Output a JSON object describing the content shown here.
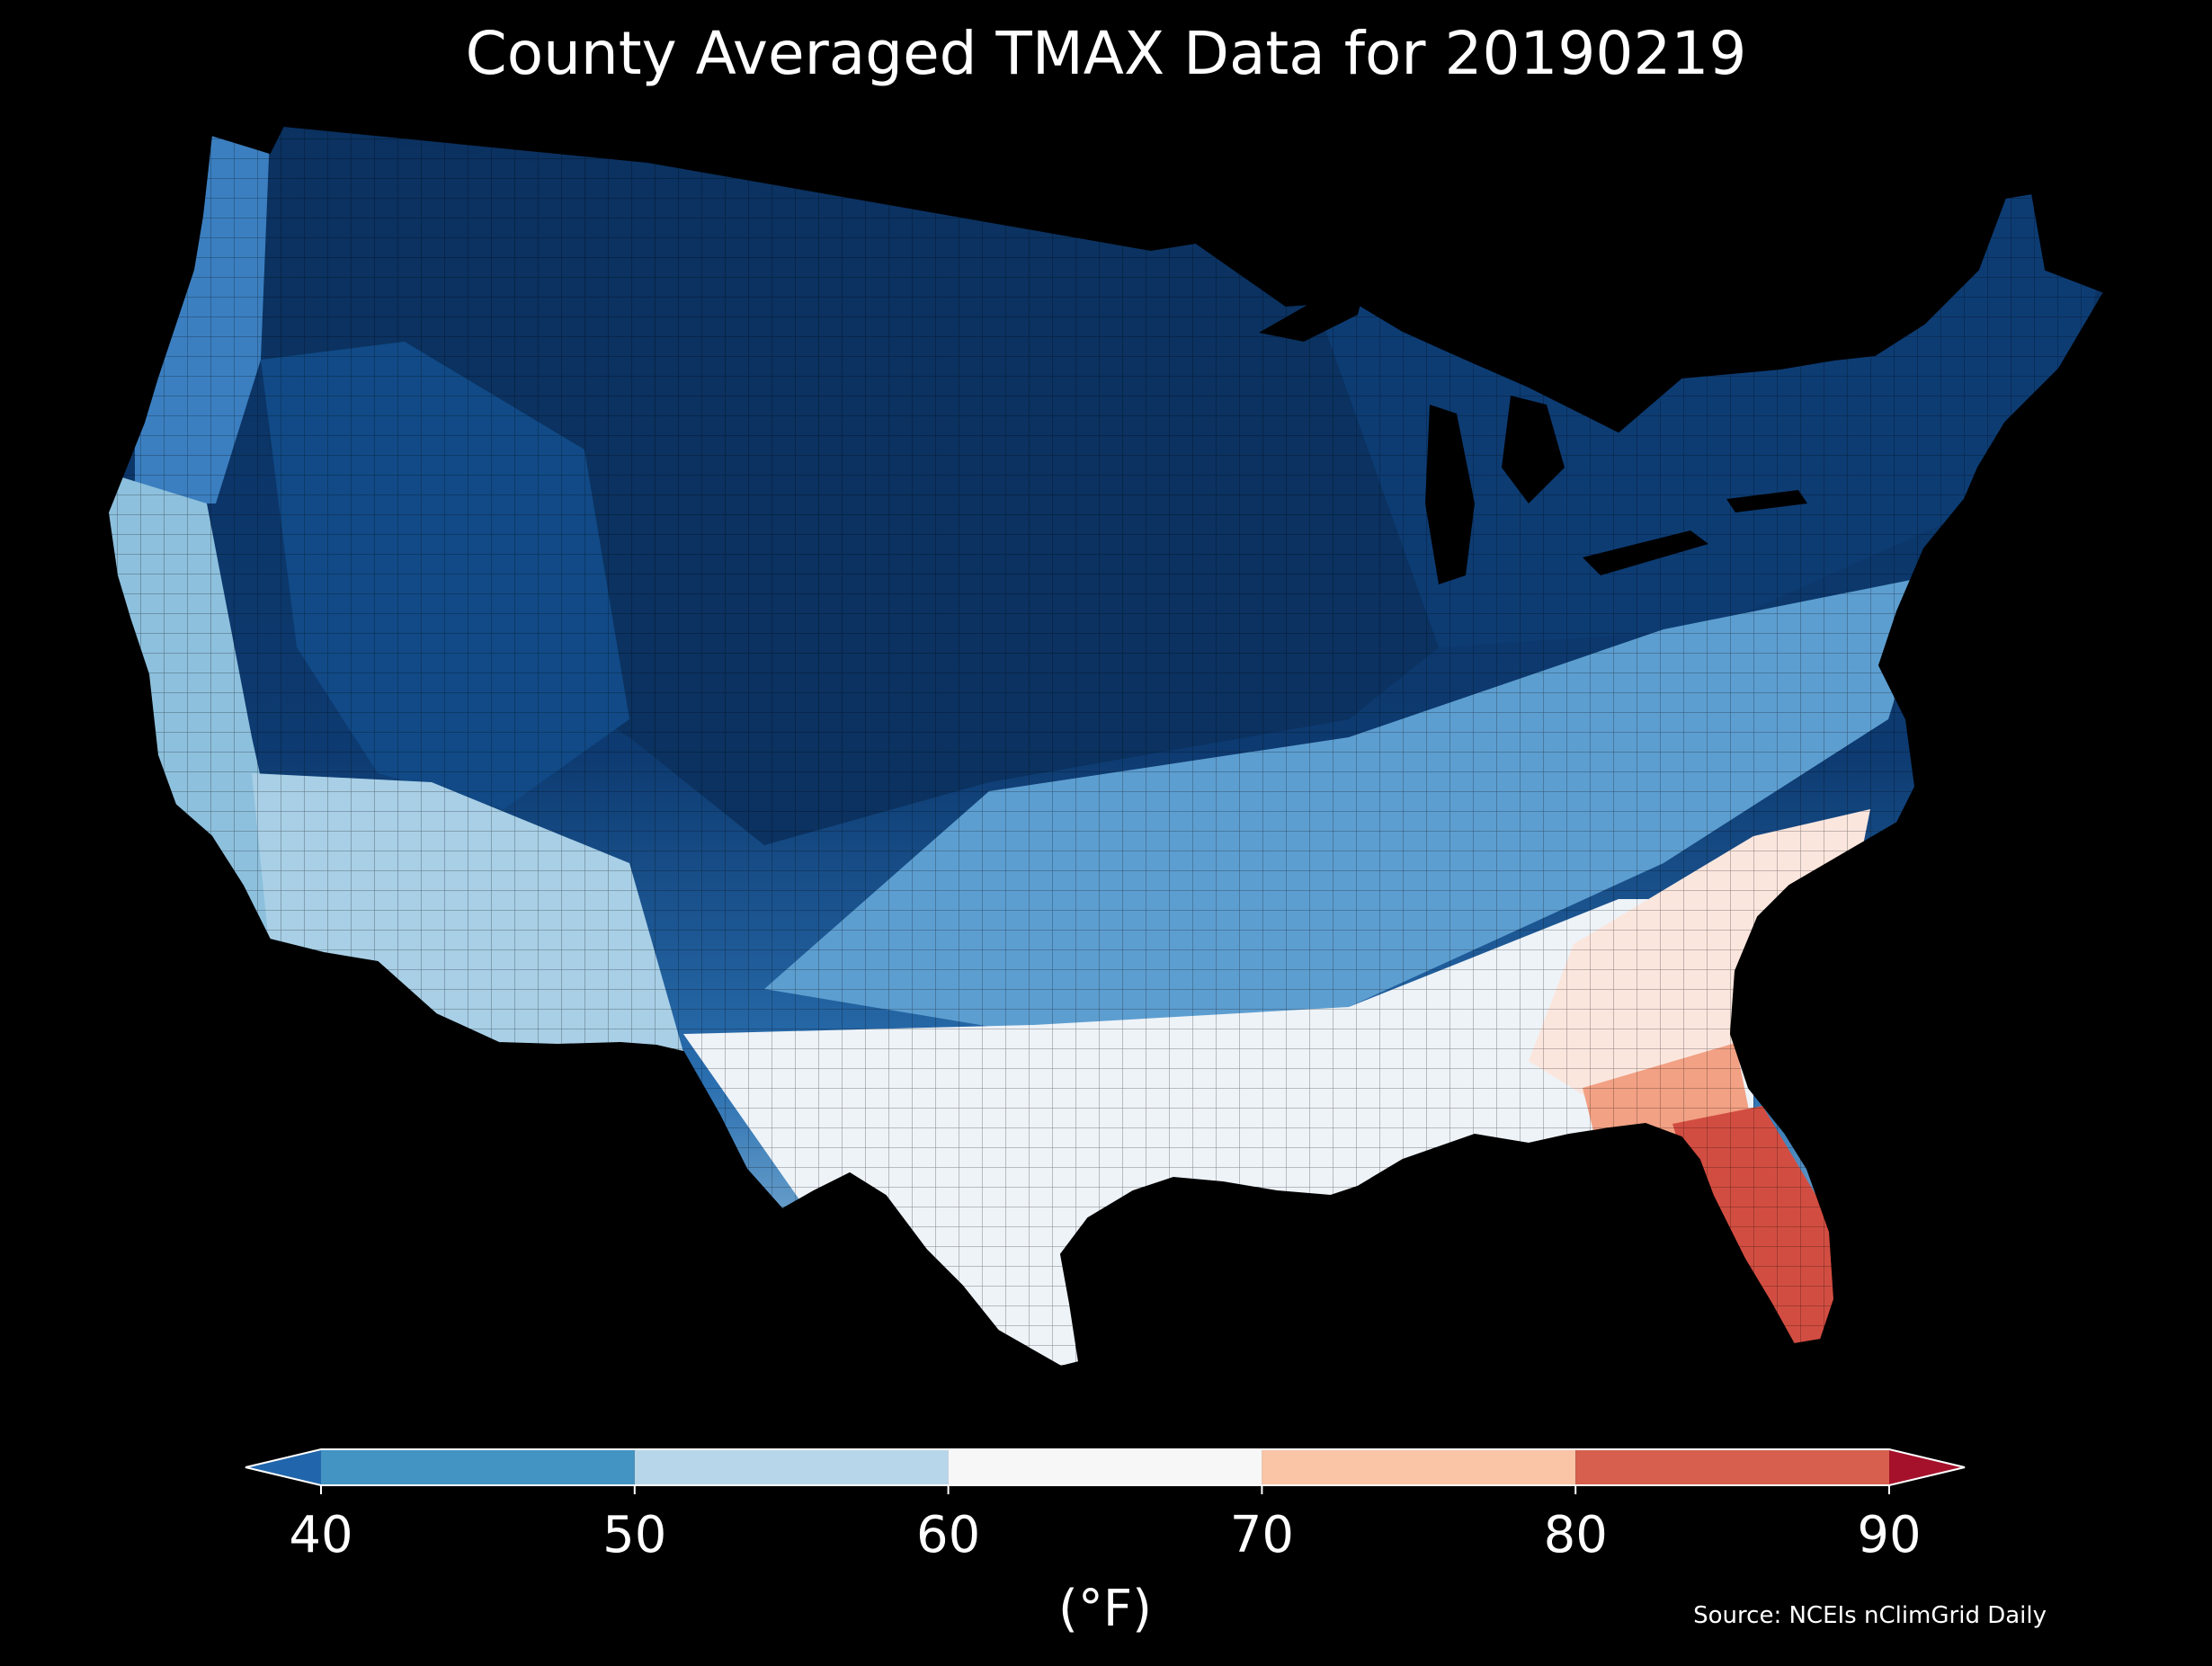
{
  "title": "County Averaged TMAX Data for 20190219",
  "source": "Source: NCEIs nClimGrid Daily",
  "colorbar": {
    "label": "(°F)",
    "ticks": [
      "40",
      "50",
      "60",
      "70",
      "80",
      "90"
    ],
    "bins": [
      {
        "from": null,
        "to": 40,
        "color": "#2166ac"
      },
      {
        "from": 40,
        "to": 50,
        "color": "#4393c3"
      },
      {
        "from": 50,
        "to": 60,
        "color": "#b8d6e9"
      },
      {
        "from": 60,
        "to": 70,
        "color": "#f7f7f7"
      },
      {
        "from": 70,
        "to": 80,
        "color": "#fac4a6"
      },
      {
        "from": 80,
        "to": 90,
        "color": "#d6604d"
      },
      {
        "from": 90,
        "to": null,
        "color": "#a5112a"
      }
    ]
  },
  "map_regions": [
    {
      "name": "northern-plains-cold",
      "tmax_band": "<40",
      "color": "#0b3260"
    },
    {
      "name": "mountain-west-cold",
      "tmax_band": "<40",
      "color": "#114a86"
    },
    {
      "name": "pacific-northwest",
      "tmax_band": "40-50",
      "color": "#3b7fc0"
    },
    {
      "name": "california-coast",
      "tmax_band": "50-60",
      "color": "#8dc0dd"
    },
    {
      "name": "southwest-desert",
      "tmax_band": "50-60",
      "color": "#a8cfe6"
    },
    {
      "name": "mid-south",
      "tmax_band": "40-50",
      "color": "#5d9ed0"
    },
    {
      "name": "gulf-coast",
      "tmax_band": "60-70",
      "color": "#eef3f8"
    },
    {
      "name": "carolinas-georgia",
      "tmax_band": "60-70",
      "color": "#fbe6de"
    },
    {
      "name": "florida",
      "tmax_band": "80-90",
      "color": "#d24d41"
    },
    {
      "name": "northeast",
      "tmax_band": "<40",
      "color": "#0d3c73"
    }
  ]
}
